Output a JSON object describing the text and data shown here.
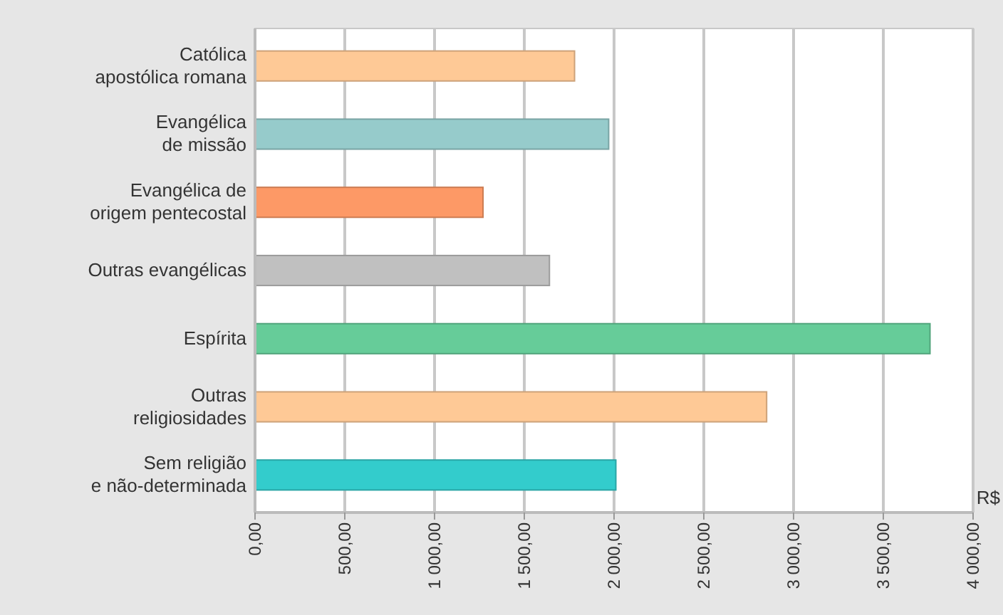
{
  "chart_data": {
    "type": "bar",
    "orientation": "horizontal",
    "xlabel": "R$",
    "categories": [
      "Católica\napostólica romana",
      "Evangélica\nde missão",
      "Evangélica de\norigem pentecostal",
      "Outras evangélicas",
      "Espírita",
      "Outras\nreligiosidades",
      "Sem religião\ne não-determinada"
    ],
    "values": [
      1780,
      1970,
      1270,
      1640,
      3760,
      2850,
      2010
    ],
    "colors": [
      "#fec996",
      "#96cbcb",
      "#fd9966",
      "#c0c0c0",
      "#66cc99",
      "#fec996",
      "#33cccc"
    ],
    "xlim": [
      0,
      4000
    ],
    "xticks": [
      {
        "value": 0,
        "label": "0,00"
      },
      {
        "value": 500,
        "label": "500,00"
      },
      {
        "value": 1000,
        "label": "1 000,00"
      },
      {
        "value": 1500,
        "label": "1 500,00"
      },
      {
        "value": 2000,
        "label": "2 000,00"
      },
      {
        "value": 2500,
        "label": "2 500,00"
      },
      {
        "value": 3000,
        "label": "3 000,00"
      },
      {
        "value": 3500,
        "label": "3 500,00"
      },
      {
        "value": 4000,
        "label": "4 000,00"
      }
    ],
    "grid": "x"
  }
}
